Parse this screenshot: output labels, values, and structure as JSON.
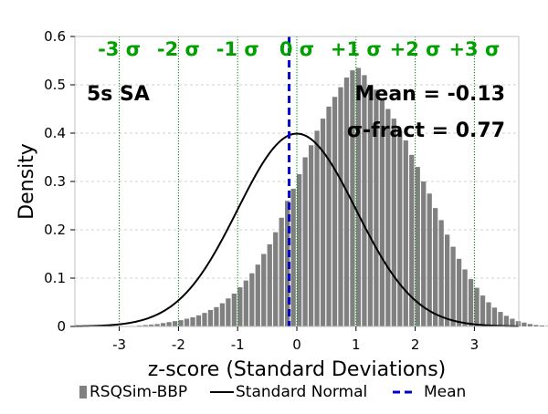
{
  "chart_data": {
    "type": "bar",
    "xlabel": "z-score (Standard Deviations)",
    "ylabel": "Density",
    "xlim": [
      -3.75,
      3.75
    ],
    "ylim": [
      0,
      0.6
    ],
    "x_ticks": [
      -3,
      -2,
      -1,
      0,
      1,
      2,
      3
    ],
    "x_tick_labels": [
      "-3",
      "-2",
      "-1",
      "0",
      "1",
      "2",
      "3"
    ],
    "y_ticks": [
      0,
      0.1,
      0.2,
      0.3,
      0.4,
      0.5,
      0.6
    ],
    "y_tick_labels": [
      "0",
      "0.1",
      "0.2",
      "0.3",
      "0.4",
      "0.5",
      "0.6"
    ],
    "grid": true,
    "sigma_lines": [
      -3,
      -2,
      -1,
      0,
      1,
      2,
      3
    ],
    "sigma_labels": [
      "-3 σ",
      "-2 σ",
      "-1 σ",
      "0 σ",
      "+1 σ",
      "+2 σ",
      "+3 σ"
    ],
    "annotations": {
      "panel": "5s SA",
      "mean_text": "Mean = -0.13",
      "sigma_fract_text": "σ-fract = 0.77"
    },
    "mean": -0.13,
    "histogram": {
      "name": "RSQSim-BBP",
      "color": "#808080",
      "bin_width": 0.1,
      "bin_start": -2.8,
      "values": [
        0.001,
        0.002,
        0.003,
        0.004,
        0.005,
        0.007,
        0.009,
        0.011,
        0.013,
        0.016,
        0.019,
        0.023,
        0.028,
        0.034,
        0.04,
        0.048,
        0.058,
        0.068,
        0.081,
        0.095,
        0.11,
        0.128,
        0.15,
        0.17,
        0.195,
        0.225,
        0.26,
        0.285,
        0.315,
        0.35,
        0.375,
        0.405,
        0.43,
        0.455,
        0.475,
        0.495,
        0.515,
        0.53,
        0.535,
        0.52,
        0.5,
        0.49,
        0.47,
        0.45,
        0.43,
        0.405,
        0.385,
        0.355,
        0.33,
        0.3,
        0.275,
        0.245,
        0.22,
        0.19,
        0.165,
        0.14,
        0.118,
        0.098,
        0.08,
        0.064,
        0.05,
        0.039,
        0.03,
        0.022,
        0.016,
        0.011,
        0.008,
        0.005,
        0.003,
        0.002,
        0.001
      ]
    },
    "curve": {
      "name": "Standard Normal",
      "color": "#000000",
      "mu": 0,
      "sigma": 1
    },
    "mean_line": {
      "name": "Mean",
      "color": "#0000cc"
    },
    "legend": {
      "placement": "bottom",
      "entries": [
        "RSQSim-BBP",
        "Standard Normal",
        "Mean"
      ]
    },
    "colors": {
      "sigma_line": "#008000",
      "sigma_label": "#00a000",
      "grid": "#d0d0d0"
    }
  }
}
